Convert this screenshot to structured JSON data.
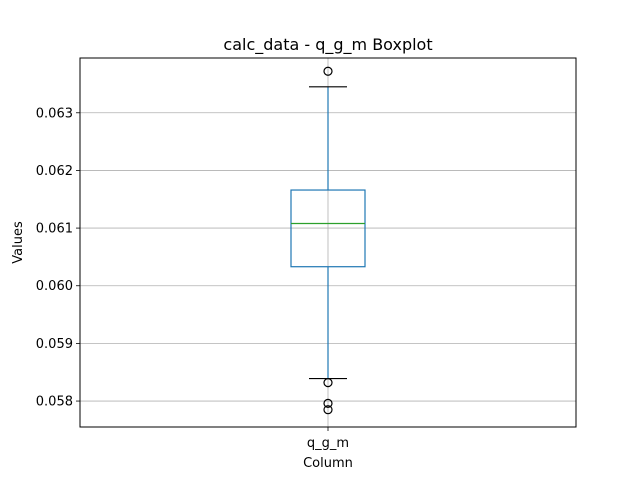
{
  "chart_data": {
    "type": "boxplot",
    "title": "calc_data - q_g_m Boxplot",
    "xlabel": "Column",
    "ylabel": "Values",
    "categories": [
      "q_g_m"
    ],
    "ylim": [
      0.05755,
      0.06395
    ],
    "yticks": [
      0.058,
      0.059,
      0.06,
      0.061,
      0.062,
      0.063
    ],
    "ytick_labels": [
      "0.058",
      "0.059",
      "0.060",
      "0.061",
      "0.062",
      "0.063"
    ],
    "grid": true,
    "boxes": [
      {
        "category": "q_g_m",
        "whisker_low": 0.05839,
        "q1": 0.06033,
        "median": 0.06108,
        "q3": 0.06166,
        "whisker_high": 0.06345,
        "outliers": [
          0.06372,
          0.05832,
          0.05796,
          0.05785
        ]
      }
    ],
    "colors": {
      "box": "#1f77b4",
      "median": "#2ca02c",
      "caps": "#000000",
      "grid": "#b0b0b0",
      "axes": "#000000"
    }
  }
}
